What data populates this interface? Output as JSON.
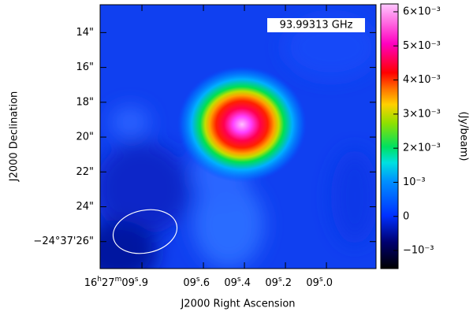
{
  "chart_data": {
    "type": "image",
    "annotation": "93.99313 GHz",
    "x_label": "J2000 Right Ascension",
    "y_label": "J2000 Declination",
    "colorbar_label": "(Jy/beam)",
    "xlim": [
      10.104,
      8.758
    ],
    "xticks": [
      {
        "value": 9.9,
        "label": "16h27m09s.9"
      },
      {
        "value": 9.6,
        "label": "09s.6"
      },
      {
        "value": 9.4,
        "label": "09s.4"
      },
      {
        "value": 9.2,
        "label": "09s.2"
      },
      {
        "value": 9.0,
        "label": "09s.0"
      }
    ],
    "ylim": [
      27.55,
      12.4
    ],
    "yticks": [
      {
        "value": 14,
        "label": "14\""
      },
      {
        "value": 16,
        "label": "16\""
      },
      {
        "value": 18,
        "label": "18\""
      },
      {
        "value": 20,
        "label": "20\""
      },
      {
        "value": 22,
        "label": "22\""
      },
      {
        "value": 24,
        "label": "24\""
      },
      {
        "value": 26,
        "label": "−24°37'26\""
      }
    ],
    "clim": [
      -0.00153,
      0.00623
    ],
    "cticks": [
      {
        "value": -0.001,
        "label": "−10⁻³"
      },
      {
        "value": 0,
        "label": "0"
      },
      {
        "value": 0.001,
        "label": "10⁻³"
      },
      {
        "value": 0.002,
        "label": "2×10⁻³"
      },
      {
        "value": 0.003,
        "label": "3×10⁻³"
      },
      {
        "value": 0.004,
        "label": "4×10⁻³"
      },
      {
        "value": 0.005,
        "label": "5×10⁻³"
      },
      {
        "value": 0.006,
        "label": "6×10⁻³"
      }
    ]
  }
}
